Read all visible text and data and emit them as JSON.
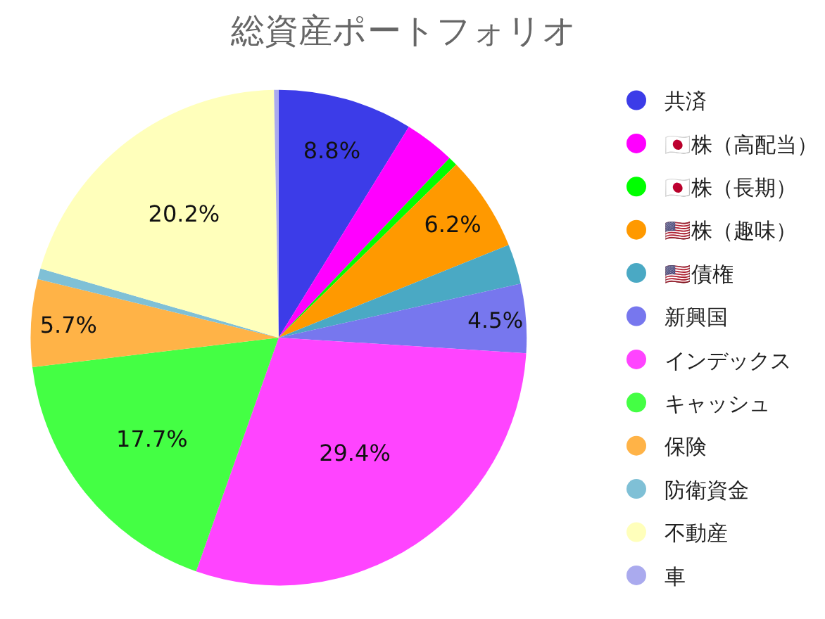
{
  "chart_data": {
    "type": "pie",
    "title": "総資産ポートフォリオ",
    "categories": [
      "共済",
      "🇯🇵株（高配当）",
      "🇯🇵株（長期）",
      "🇺🇸株（趣味）",
      "🇺🇸債権",
      "新興国",
      "インデックス",
      "キャッシュ",
      "保険",
      "防衛資金",
      "不動産",
      "車"
    ],
    "values": [
      8.8,
      3.3,
      0.6,
      6.2,
      2.6,
      4.5,
      29.4,
      17.7,
      5.7,
      0.7,
      20.2,
      0.3
    ],
    "colors": [
      "#3c3ce8",
      "#ff00ff",
      "#00ff00",
      "#ff9900",
      "#4aa9c4",
      "#7777ee",
      "#ff44ff",
      "#44ff44",
      "#ffb347",
      "#7fc0d6",
      "#ffffbb",
      "#aaaaee"
    ],
    "value_labels": [
      "8.8%",
      null,
      null,
      "6.2%",
      null,
      "4.5%",
      "29.4%",
      "17.7%",
      "5.7%",
      null,
      "20.2%",
      null
    ],
    "legend": "right"
  }
}
